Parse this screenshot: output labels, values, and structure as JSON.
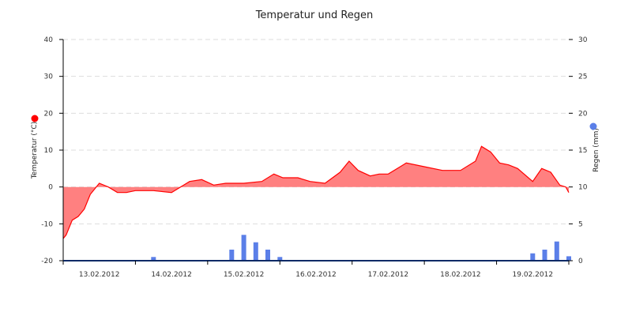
{
  "colors": {
    "temperature": "#ff0000",
    "temperature_fill": "#ff8080",
    "rain": "#5b7fe8",
    "grid": "#dddddd",
    "axis": "#000000",
    "baseline": "#0a2a66"
  },
  "chart_data": {
    "type": "area",
    "title": "Temperatur und Regen",
    "grid": true,
    "legend": "none",
    "x_range": [
      "12.02.2012 12:00",
      "19.02.2012 12:00"
    ],
    "x_tick_labels": [
      "13.02.2012",
      "14.02.2012",
      "15.02.2012",
      "16.02.2012",
      "17.02.2012",
      "18.02.2012",
      "19.02.2012"
    ],
    "y_left": {
      "label": "Temperatur (°C)",
      "ylim": [
        -20,
        40
      ],
      "ticks": [
        "-20",
        "-10",
        "0",
        "10",
        "20",
        "30",
        "40"
      ]
    },
    "y_right": {
      "label": "Regen (mm)",
      "ylim": [
        0,
        30
      ],
      "ticks": [
        "0",
        "5",
        "10",
        "15",
        "20",
        "25",
        "30"
      ]
    },
    "series": [
      {
        "name": "Temperatur",
        "axis": "left",
        "type": "area",
        "x": [
          "12.02.2012 12:00",
          "12.02.2012 13:00",
          "12.02.2012 15:00",
          "12.02.2012 17:00",
          "12.02.2012 19:00",
          "12.02.2012 21:00",
          "13.02.2012 00:00",
          "13.02.2012 03:00",
          "13.02.2012 06:00",
          "13.02.2012 09:00",
          "13.02.2012 12:00",
          "13.02.2012 18:00",
          "14.02.2012 00:00",
          "14.02.2012 06:00",
          "14.02.2012 10:00",
          "14.02.2012 14:00",
          "14.02.2012 18:00",
          "15.02.2012 00:00",
          "15.02.2012 06:00",
          "15.02.2012 10:00",
          "15.02.2012 13:00",
          "15.02.2012 18:00",
          "15.02.2012 22:00",
          "16.02.2012 03:00",
          "16.02.2012 08:00",
          "16.02.2012 11:00",
          "16.02.2012 14:00",
          "16.02.2012 18:00",
          "16.02.2012 21:00",
          "17.02.2012 00:00",
          "17.02.2012 06:00",
          "17.02.2012 12:00",
          "17.02.2012 18:00",
          "18.02.2012 00:00",
          "18.02.2012 05:00",
          "18.02.2012 07:00",
          "18.02.2012 10:00",
          "18.02.2012 13:00",
          "18.02.2012 16:00",
          "18.02.2012 19:00",
          "19.02.2012 00:00",
          "19.02.2012 03:00",
          "19.02.2012 06:00",
          "19.02.2012 09:00",
          "19.02.2012 11:00",
          "19.02.2012 12:00"
        ],
        "values": [
          -14,
          -13,
          -9,
          -8,
          -6,
          -2,
          1,
          0,
          -1.5,
          -1.5,
          -1,
          -1,
          -1.5,
          1.5,
          2,
          0.5,
          1,
          1,
          1.5,
          3.5,
          2.5,
          2.5,
          1.5,
          1,
          4,
          7,
          4.5,
          3,
          3.5,
          3.5,
          6.5,
          5.5,
          4.5,
          4.5,
          7,
          11,
          9.5,
          6.5,
          6,
          5,
          1.5,
          5,
          4,
          0.5,
          0,
          -1.5
        ]
      },
      {
        "name": "Regen",
        "axis": "right",
        "type": "bar",
        "x": [
          "13.02.2012 18:00",
          "14.02.2012 20:00",
          "15.02.2012 00:00",
          "15.02.2012 04:00",
          "15.02.2012 08:00",
          "15.02.2012 12:00",
          "19.02.2012 00:00",
          "19.02.2012 04:00",
          "19.02.2012 08:00",
          "19.02.2012 12:00"
        ],
        "values": [
          0.5,
          1.5,
          3.5,
          2.5,
          1.5,
          0.5,
          1.0,
          1.5,
          2.6,
          0.6
        ]
      }
    ]
  }
}
